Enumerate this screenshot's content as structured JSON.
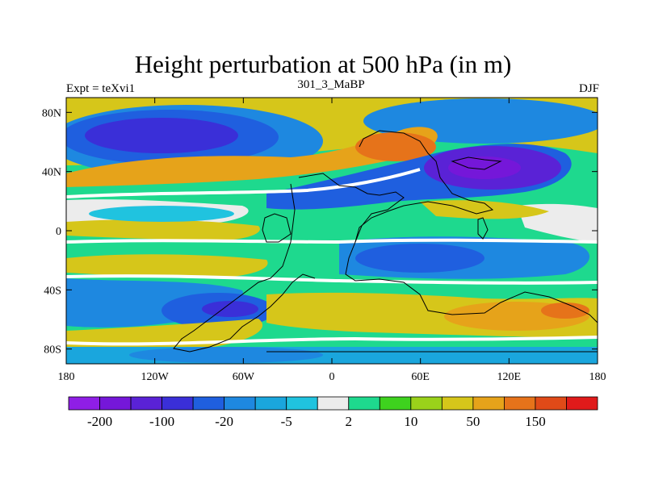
{
  "title": "Height perturbation at 500 hPa (in m)",
  "left_label": "Expt = teXvi1",
  "center_label": "301_3_MaBP",
  "right_label": "DJF",
  "lat_ticks": [
    {
      "value": 80,
      "label": "80N"
    },
    {
      "value": 40,
      "label": "40N"
    },
    {
      "value": 0,
      "label": "0"
    },
    {
      "value": -40,
      "label": "40S"
    },
    {
      "value": -80,
      "label": "80S"
    }
  ],
  "lon_ticks": [
    {
      "value": -180,
      "label": "180"
    },
    {
      "value": -120,
      "label": "120W"
    },
    {
      "value": -60,
      "label": "60W"
    },
    {
      "value": 0,
      "label": "0"
    },
    {
      "value": 60,
      "label": "60E"
    },
    {
      "value": 120,
      "label": "120E"
    },
    {
      "value": 180,
      "label": "180"
    }
  ],
  "colorbar": {
    "colors": [
      "#8f1ee6",
      "#7517d9",
      "#5a22d6",
      "#3a2fd8",
      "#1f5fdf",
      "#1e88e0",
      "#1aa6dd",
      "#20c3df",
      "#ececec",
      "#1ed98e",
      "#3ed21e",
      "#9ad21a",
      "#d6c61a",
      "#e6a31a",
      "#e6731a",
      "#e04a18",
      "#e01a1a"
    ],
    "labels": [
      {
        "after_box": 1,
        "label": "-200"
      },
      {
        "after_box": 3,
        "label": "-100"
      },
      {
        "after_box": 5,
        "label": "-20"
      },
      {
        "after_box": 7,
        "label": "-5"
      },
      {
        "after_box": 9,
        "label": "2"
      },
      {
        "after_box": 11,
        "label": "10"
      },
      {
        "after_box": 13,
        "label": "50"
      },
      {
        "after_box": 15,
        "label": "150"
      }
    ]
  },
  "field_colors": {
    "neg_strong": "#5a22d6",
    "neg_mid": "#1f5fdf",
    "neg_light": "#1e88e0",
    "neg_weak": "#20c3df",
    "neutral": "#ececec",
    "pos_weak": "#1ed98e",
    "pos_green": "#3ed21e",
    "pos_lime": "#9ad21a",
    "pos_mid": "#d6c61a",
    "pos_orange": "#e6a31a",
    "pos_strong": "#e6731a"
  }
}
